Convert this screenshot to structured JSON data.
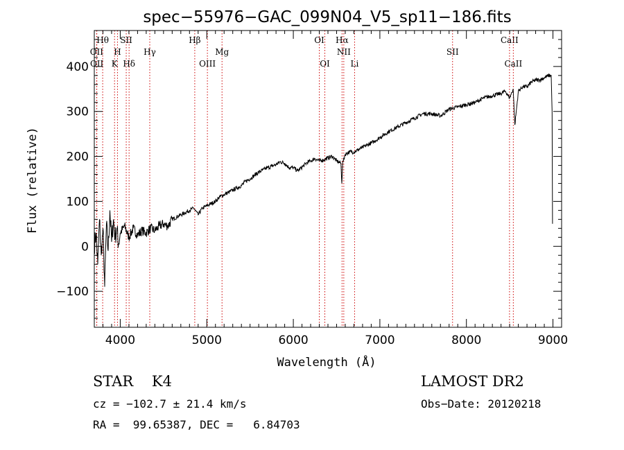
{
  "chart_data": {
    "type": "line",
    "title": "spec−55976−GAC_099N04_V5_sp11−186.fits",
    "xlabel": "Wavelength (Å)",
    "ylabel": "Flux (relative)",
    "xlim": [
      3700,
      9100
    ],
    "ylim": [
      -180,
      480
    ],
    "xticks": [
      4000,
      5000,
      6000,
      7000,
      8000,
      9000
    ],
    "xtick_labels": [
      "4000",
      "5000",
      "6000",
      "7000",
      "8000",
      "9000"
    ],
    "yticks": [
      -100,
      0,
      100,
      200,
      300,
      400
    ],
    "ytick_labels": [
      "−100",
      "0",
      "100",
      "200",
      "300",
      "400"
    ],
    "grid": false,
    "line_color": "#000000",
    "marker_color": "#cc0000",
    "series": [
      {
        "x": [
          3700,
          3720,
          3740,
          3760,
          3780,
          3800,
          3820,
          3840,
          3860,
          3880,
          3900,
          3920,
          3940,
          3960,
          3980,
          4000,
          4050,
          4100,
          4150,
          4200,
          4250,
          4300,
          4350,
          4400,
          4450,
          4500,
          4550,
          4600,
          4650,
          4700,
          4750,
          4800,
          4850,
          4900,
          4950,
          5000,
          5050,
          5100,
          5150,
          5200,
          5250,
          5300,
          5350,
          5400,
          5450,
          5500,
          5550,
          5600,
          5650,
          5700,
          5750,
          5800,
          5850,
          5900,
          5950,
          6000,
          6050,
          6100,
          6150,
          6200,
          6250,
          6300,
          6350,
          6400,
          6450,
          6500,
          6550,
          6560,
          6570,
          6600,
          6650,
          6700,
          6750,
          6800,
          6850,
          6900,
          6950,
          7000,
          7100,
          7200,
          7300,
          7400,
          7500,
          7600,
          7700,
          7800,
          7900,
          8000,
          8100,
          8200,
          8300,
          8400,
          8450,
          8500,
          8540,
          8560,
          8600,
          8650,
          8700,
          8750,
          8800,
          8850,
          8900,
          8950,
          8980,
          8990,
          8995
        ],
        "y": [
          0,
          30,
          -40,
          60,
          -20,
          40,
          -90,
          50,
          -10,
          80,
          10,
          60,
          20,
          40,
          5,
          30,
          45,
          20,
          40,
          25,
          35,
          30,
          40,
          35,
          45,
          50,
          45,
          60,
          65,
          70,
          75,
          80,
          85,
          70,
          85,
          90,
          95,
          100,
          110,
          115,
          120,
          125,
          130,
          135,
          145,
          150,
          158,
          165,
          170,
          175,
          178,
          182,
          188,
          185,
          175,
          175,
          168,
          176,
          185,
          190,
          195,
          190,
          192,
          197,
          200,
          190,
          185,
          140,
          185,
          205,
          210,
          210,
          215,
          220,
          225,
          230,
          235,
          242,
          255,
          265,
          275,
          285,
          295,
          295,
          290,
          305,
          310,
          315,
          320,
          330,
          335,
          340,
          345,
          330,
          350,
          270,
          345,
          355,
          355,
          365,
          370,
          370,
          375,
          380,
          380,
          300,
          50
        ]
      }
    ],
    "line_markers": [
      {
        "label": "Hθ",
        "x": 3797,
        "row": 1
      },
      {
        "label": "OII",
        "x": 3727,
        "row": 2
      },
      {
        "label": "OII",
        "x": 3729,
        "row": 3
      },
      {
        "label": "H",
        "x": 3968,
        "row": 2
      },
      {
        "label": "K",
        "x": 3934,
        "row": 3
      },
      {
        "label": "SII",
        "x": 4069,
        "row": 1
      },
      {
        "label": "Hδ",
        "x": 4102,
        "row": 3
      },
      {
        "label": "Hγ",
        "x": 4341,
        "row": 2
      },
      {
        "label": "Hβ",
        "x": 4861,
        "row": 1
      },
      {
        "label": "OIII",
        "x": 5007,
        "row": 3
      },
      {
        "label": "Mg",
        "x": 5176,
        "row": 2
      },
      {
        "label": "OI",
        "x": 6300,
        "row": 1
      },
      {
        "label": "OI",
        "x": 6364,
        "row": 3
      },
      {
        "label": "Hα",
        "x": 6563,
        "row": 1
      },
      {
        "label": "NII",
        "x": 6583,
        "row": 2
      },
      {
        "label": "Li",
        "x": 6708,
        "row": 3
      },
      {
        "label": "SII",
        "x": 7840,
        "row": 2
      },
      {
        "label": "CaII",
        "x": 8498,
        "row": 1
      },
      {
        "label": "CaII",
        "x": 8542,
        "row": 3
      }
    ]
  },
  "info": {
    "class_line": "STAR    K4",
    "survey": "LAMOST DR2",
    "cz": "cz = −102.7 ± 21.4 km/s",
    "obs_date": "Obs−Date: 20120218",
    "radec": "RA =  99.65387, DEC =   6.84703"
  }
}
